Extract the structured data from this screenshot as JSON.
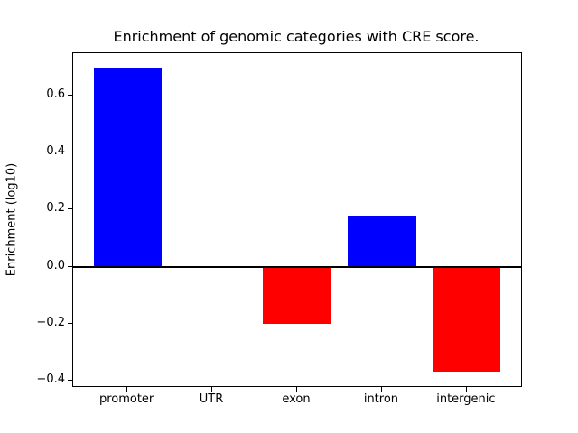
{
  "chart_data": {
    "type": "bar",
    "title": "Enrichment of genomic categories with CRE score.",
    "xlabel": "",
    "ylabel": "Enrichment (log10)",
    "categories": [
      "promoter",
      "UTR",
      "exon",
      "intron",
      "intergenic"
    ],
    "values": [
      0.7,
      -0.005,
      -0.2,
      0.18,
      -0.37
    ],
    "bar_colors": [
      "#0000FF",
      "#FF0000",
      "#FF0000",
      "#0000FF",
      "#FF0000"
    ],
    "positive_color": "#0000FF",
    "negative_color": "#FF0000",
    "ytick_values": [
      -0.4,
      -0.2,
      0.0,
      0.2,
      0.4,
      0.6
    ],
    "ytick_labels": [
      "−0.4",
      "−0.2",
      "0.0",
      "0.2",
      "0.4",
      "0.6"
    ],
    "ylim": [
      -0.42,
      0.75
    ],
    "xlim": [
      -0.64,
      4.64
    ],
    "bar_width": 0.8,
    "zero_line": true,
    "zero_line_color": "#000000",
    "grid": false,
    "legend": null,
    "background_color": "#FFFFFF",
    "spine_color": "#000000"
  }
}
